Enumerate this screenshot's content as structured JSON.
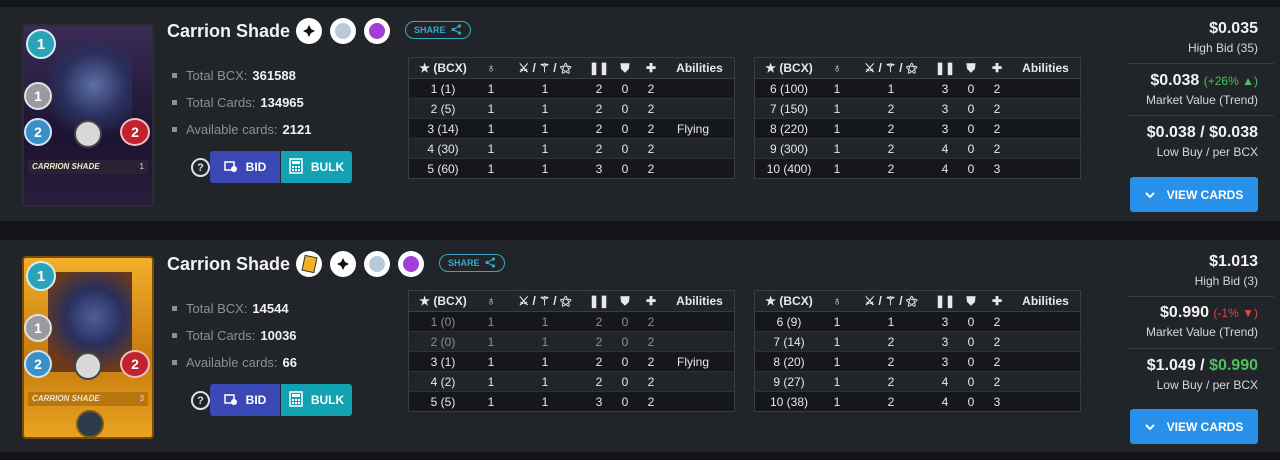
{
  "cards": [
    {
      "name": "Carrion Shade",
      "card_label": "CARRION SHADE",
      "card_level": "1",
      "mana": "1",
      "melee": "1",
      "speed": "2",
      "health": "2",
      "variant": "regular",
      "share_label": "SHARE",
      "icons": [
        "melee-icon",
        "neutral-element-icon",
        "death-element-icon"
      ],
      "stats": {
        "total_bcx_label": "Total BCX:",
        "total_bcx": "361588",
        "total_cards_label": "Total Cards:",
        "total_cards": "134965",
        "available_label": "Available cards:",
        "available": "2121"
      },
      "bid_label": "BID",
      "bulk_label": "BULK",
      "levels_left": [
        {
          "bcx": "1 (1)",
          "mana": "1",
          "atk": "1",
          "spd": "2",
          "arm": "0",
          "hp": "2",
          "ability": "",
          "dim": false
        },
        {
          "bcx": "2 (5)",
          "mana": "1",
          "atk": "1",
          "spd": "2",
          "arm": "0",
          "hp": "2",
          "ability": "",
          "dim": false
        },
        {
          "bcx": "3 (14)",
          "mana": "1",
          "atk": "1",
          "spd": "2",
          "arm": "0",
          "hp": "2",
          "ability": "Flying",
          "dim": false
        },
        {
          "bcx": "4 (30)",
          "mana": "1",
          "atk": "1",
          "spd": "2",
          "arm": "0",
          "hp": "2",
          "ability": "",
          "dim": false
        },
        {
          "bcx": "5 (60)",
          "mana": "1",
          "atk": "1",
          "spd": "3",
          "arm": "0",
          "hp": "2",
          "ability": "",
          "dim": false
        }
      ],
      "levels_right": [
        {
          "bcx": "6 (100)",
          "mana": "1",
          "atk": "1",
          "spd": "3",
          "arm": "0",
          "hp": "2",
          "ability": "",
          "dim": false
        },
        {
          "bcx": "7 (150)",
          "mana": "1",
          "atk": "2",
          "spd": "3",
          "arm": "0",
          "hp": "2",
          "ability": "",
          "dim": false
        },
        {
          "bcx": "8 (220)",
          "mana": "1",
          "atk": "2",
          "spd": "3",
          "arm": "0",
          "hp": "2",
          "ability": "",
          "dim": false
        },
        {
          "bcx": "9 (300)",
          "mana": "1",
          "atk": "2",
          "spd": "4",
          "arm": "0",
          "hp": "2",
          "ability": "",
          "dim": false
        },
        {
          "bcx": "10 (400)",
          "mana": "1",
          "atk": "2",
          "spd": "4",
          "arm": "0",
          "hp": "3",
          "ability": "",
          "dim": false
        }
      ],
      "price": {
        "high_bid": "$0.035",
        "high_bid_label": "High Bid (35)",
        "market_value": "$0.038",
        "trend": "(+26%",
        "trend_dir": "up",
        "market_label": "Market Value (Trend)",
        "low_buy": "$0.038",
        "per_bcx": "$0.038",
        "low_label": "Low Buy / per BCX",
        "per_bcx_green": false
      },
      "view_label": "VIEW CARDS"
    },
    {
      "name": "Carrion Shade",
      "card_label": "CARRION SHADE",
      "card_level": "3",
      "mana": "1",
      "melee": "1",
      "speed": "2",
      "health": "2",
      "variant": "gold",
      "share_label": "SHARE",
      "icons": [
        "gold-card-icon",
        "melee-icon",
        "neutral-element-icon",
        "death-element-icon"
      ],
      "stats": {
        "total_bcx_label": "Total BCX:",
        "total_bcx": "14544",
        "total_cards_label": "Total Cards:",
        "total_cards": "10036",
        "available_label": "Available cards:",
        "available": "66"
      },
      "bid_label": "BID",
      "bulk_label": "BULK",
      "levels_left": [
        {
          "bcx": "1 (0)",
          "mana": "1",
          "atk": "1",
          "spd": "2",
          "arm": "0",
          "hp": "2",
          "ability": "",
          "dim": true
        },
        {
          "bcx": "2 (0)",
          "mana": "1",
          "atk": "1",
          "spd": "2",
          "arm": "0",
          "hp": "2",
          "ability": "",
          "dim": true
        },
        {
          "bcx": "3 (1)",
          "mana": "1",
          "atk": "1",
          "spd": "2",
          "arm": "0",
          "hp": "2",
          "ability": "Flying",
          "dim": false
        },
        {
          "bcx": "4 (2)",
          "mana": "1",
          "atk": "1",
          "spd": "2",
          "arm": "0",
          "hp": "2",
          "ability": "",
          "dim": false
        },
        {
          "bcx": "5 (5)",
          "mana": "1",
          "atk": "1",
          "spd": "3",
          "arm": "0",
          "hp": "2",
          "ability": "",
          "dim": false
        }
      ],
      "levels_right": [
        {
          "bcx": "6 (9)",
          "mana": "1",
          "atk": "1",
          "spd": "3",
          "arm": "0",
          "hp": "2",
          "ability": "",
          "dim": false
        },
        {
          "bcx": "7 (14)",
          "mana": "1",
          "atk": "2",
          "spd": "3",
          "arm": "0",
          "hp": "2",
          "ability": "",
          "dim": false
        },
        {
          "bcx": "8 (20)",
          "mana": "1",
          "atk": "2",
          "spd": "3",
          "arm": "0",
          "hp": "2",
          "ability": "",
          "dim": false
        },
        {
          "bcx": "9 (27)",
          "mana": "1",
          "atk": "2",
          "spd": "4",
          "arm": "0",
          "hp": "2",
          "ability": "",
          "dim": false
        },
        {
          "bcx": "10 (38)",
          "mana": "1",
          "atk": "2",
          "spd": "4",
          "arm": "0",
          "hp": "3",
          "ability": "",
          "dim": false
        }
      ],
      "price": {
        "high_bid": "$1.013",
        "high_bid_label": "High Bid (3)",
        "market_value": "$0.990",
        "trend": "(-1%",
        "trend_dir": "down",
        "market_label": "Market Value (Trend)",
        "low_buy": "$1.049",
        "per_bcx": "$0.990",
        "low_label": "Low Buy / per BCX",
        "per_bcx_green": true
      },
      "view_label": "VIEW CARDS"
    }
  ],
  "table_headers": {
    "bcx": "(BCX)",
    "abilities": "Abilities"
  },
  "colors": {
    "accent_blue": "#2790e8",
    "bid_button": "#3a48b5",
    "bulk_button": "#12a3b3",
    "trend_up": "#49c35a",
    "trend_down": "#e0443f"
  }
}
